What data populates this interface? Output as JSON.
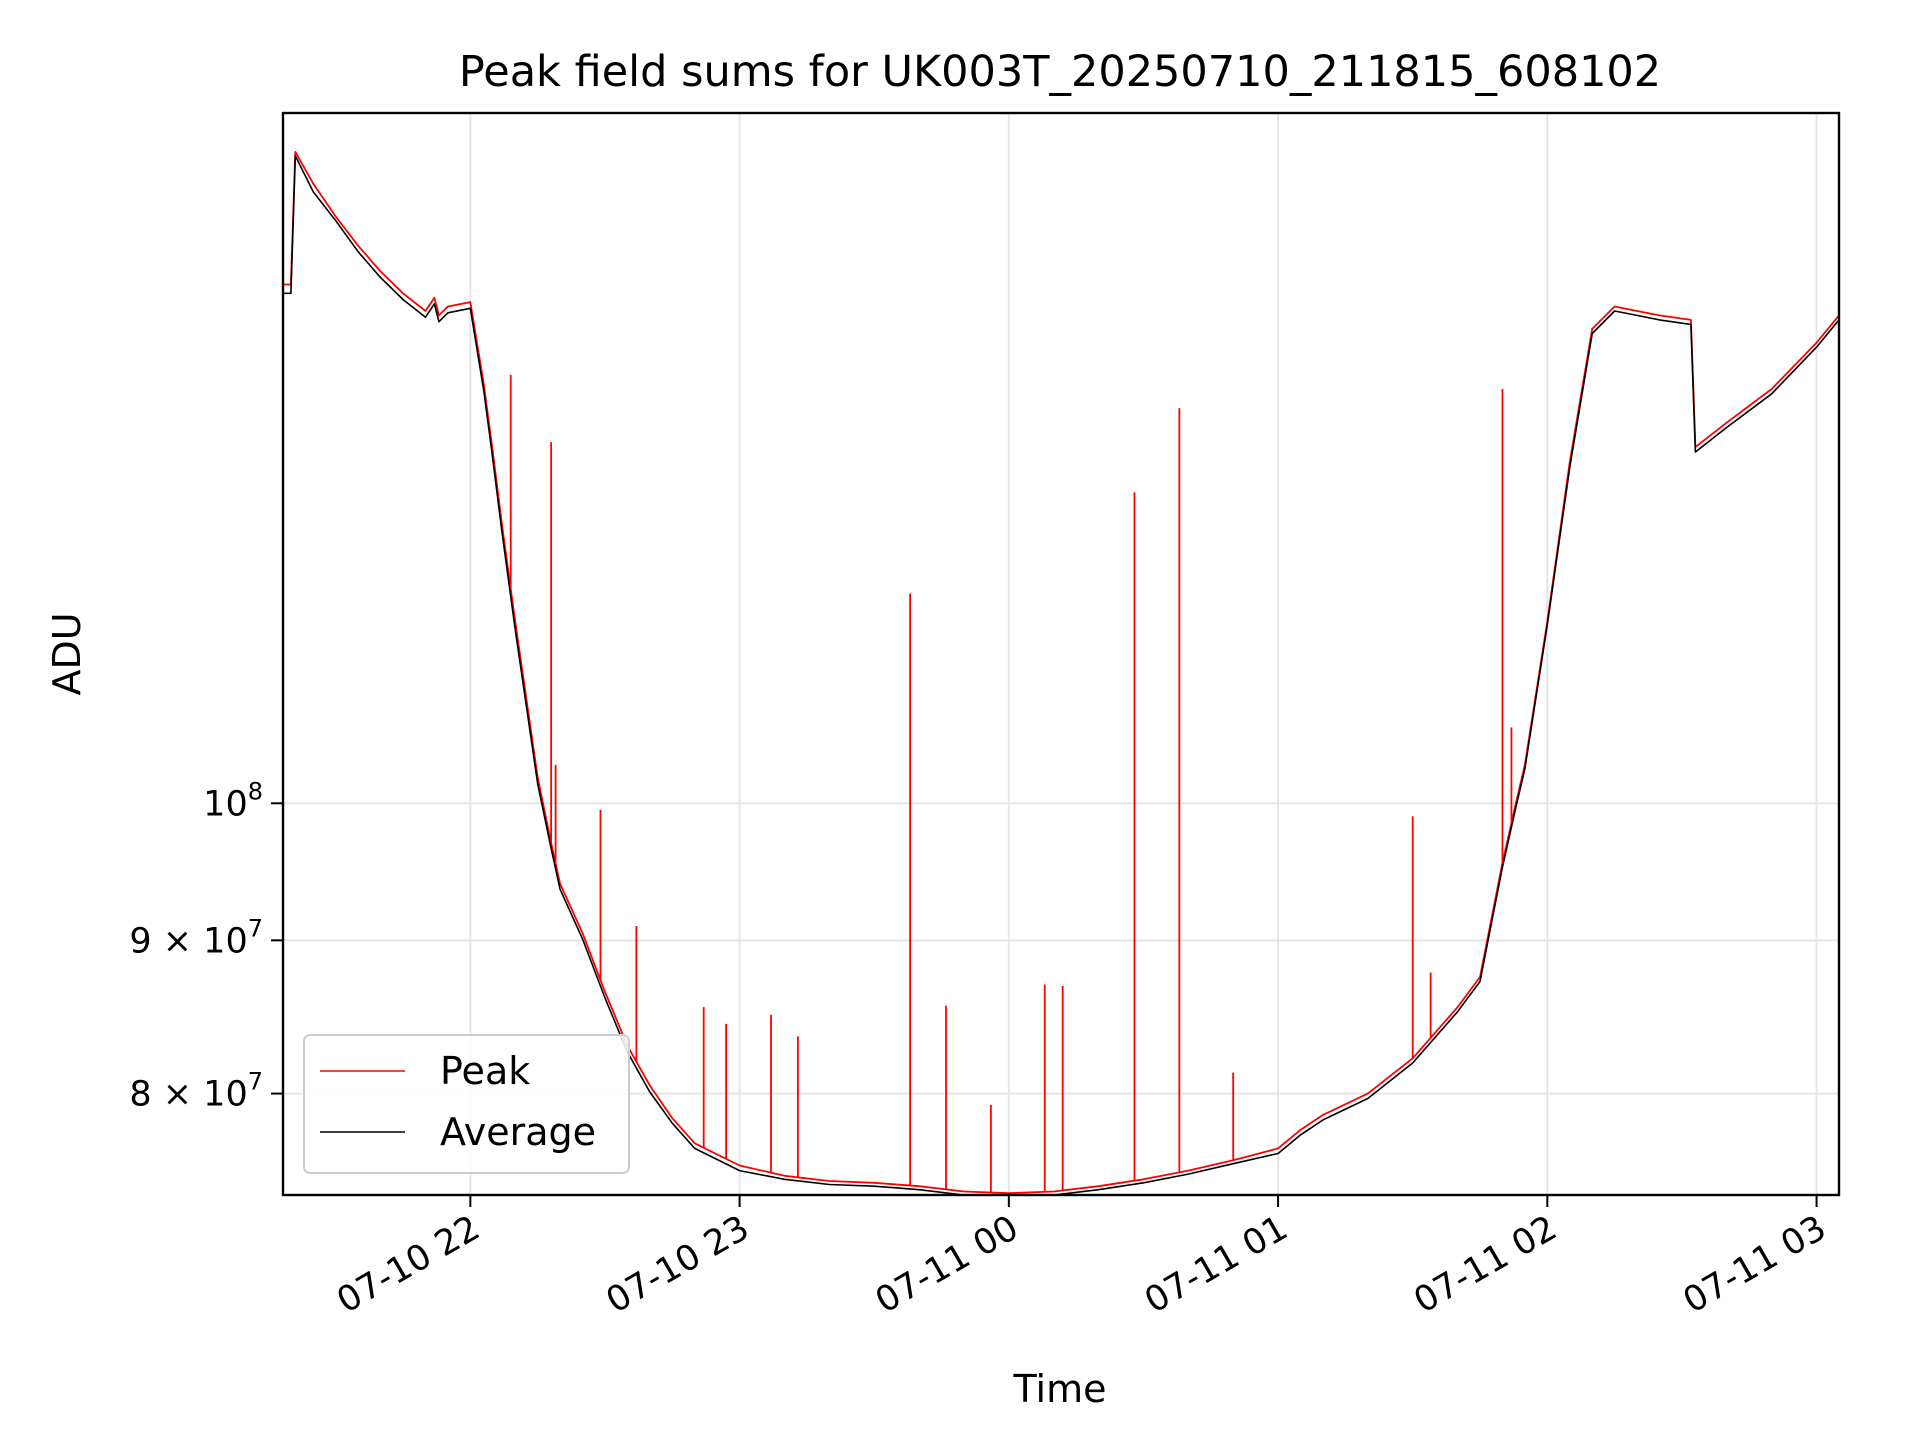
{
  "chart_data": {
    "type": "line",
    "title": "Peak field sums for UK003T_20250710_211815_608102",
    "xlabel": "Time",
    "ylabel": "ADU",
    "x_scale": "time",
    "y_scale": "log",
    "xlim": [
      "2025-07-10 21:18:15",
      "2025-07-11 03:05:00"
    ],
    "ylim": [
      74000000,
      170000000
    ],
    "x_ticks": [
      {
        "value": "2025-07-10 22:00",
        "label": "07-10 22"
      },
      {
        "value": "2025-07-10 23:00",
        "label": "07-10 23"
      },
      {
        "value": "2025-07-11 00:00",
        "label": "07-11 00"
      },
      {
        "value": "2025-07-11 01:00",
        "label": "07-11 01"
      },
      {
        "value": "2025-07-11 02:00",
        "label": "07-11 02"
      },
      {
        "value": "2025-07-11 03:00",
        "label": "07-11 03"
      }
    ],
    "y_ticks": [
      {
        "value": 80000000,
        "base": "8",
        "exp": "7"
      },
      {
        "value": 90000000,
        "base": "9",
        "exp": "7"
      },
      {
        "value": 100000000,
        "base": "",
        "exp": "8"
      }
    ],
    "grid": true,
    "legend": "lower-left",
    "series": [
      {
        "name": "Peak",
        "color": "#ff0000",
        "x": [
          "2025-07-10 21:18:15",
          "2025-07-10 21:20",
          "2025-07-10 21:21",
          "2025-07-10 21:25",
          "2025-07-10 21:30",
          "2025-07-10 21:35",
          "2025-07-10 21:40",
          "2025-07-10 21:45",
          "2025-07-10 21:50",
          "2025-07-10 21:52",
          "2025-07-10 21:53",
          "2025-07-10 21:55",
          "2025-07-10 22:00",
          "2025-07-10 22:03",
          "2025-07-10 22:05",
          "2025-07-10 22:07",
          "2025-07-10 22:10",
          "2025-07-10 22:15",
          "2025-07-10 22:18",
          "2025-07-10 22:20",
          "2025-07-10 22:25",
          "2025-07-10 22:30",
          "2025-07-10 22:35",
          "2025-07-10 22:40",
          "2025-07-10 22:45",
          "2025-07-10 22:50",
          "2025-07-10 23:00",
          "2025-07-10 23:10",
          "2025-07-10 23:20",
          "2025-07-10 23:30",
          "2025-07-10 23:40",
          "2025-07-10 23:50",
          "2025-07-11 00:00",
          "2025-07-11 00:10",
          "2025-07-11 00:20",
          "2025-07-11 00:30",
          "2025-07-11 00:40",
          "2025-07-11 00:50",
          "2025-07-11 01:00",
          "2025-07-11 01:05",
          "2025-07-11 01:10",
          "2025-07-11 01:20",
          "2025-07-11 01:30",
          "2025-07-11 01:40",
          "2025-07-11 01:45",
          "2025-07-11 01:50",
          "2025-07-11 01:53",
          "2025-07-11 01:55",
          "2025-07-11 02:00",
          "2025-07-11 02:05",
          "2025-07-11 02:10",
          "2025-07-11 02:15",
          "2025-07-11 02:20",
          "2025-07-11 02:25",
          "2025-07-11 02:32",
          "2025-07-11 02:33",
          "2025-07-11 02:40",
          "2025-07-11 02:50",
          "2025-07-11 03:00",
          "2025-07-11 03:05"
        ],
        "y": [
          149000000,
          149000000,
          165000000,
          161000000,
          157000000,
          153500000,
          150500000,
          148000000,
          146000000,
          147500000,
          145500000,
          146500000,
          147000000,
          138000000,
          131000000,
          124000000,
          115000000,
          102000000,
          97000000,
          94000000,
          90500000,
          86500000,
          83000000,
          80500000,
          78500000,
          77000000,
          75700000,
          75100000,
          74800000,
          74700000,
          74500000,
          74200000,
          74100000,
          74200000,
          74500000,
          74900000,
          75400000,
          76000000,
          76700000,
          77800000,
          78700000,
          80000000,
          82200000,
          85500000,
          87500000,
          95500000,
          100000000,
          103000000,
          115000000,
          130000000,
          144000000,
          146500000,
          146000000,
          145500000,
          145000000,
          131500000,
          134000000,
          137500000,
          142500000,
          145500000
        ]
      },
      {
        "name": "Average",
        "color": "#000000",
        "x": [
          "2025-07-10 21:18:15",
          "2025-07-10 21:20",
          "2025-07-10 21:21",
          "2025-07-10 21:25",
          "2025-07-10 21:30",
          "2025-07-10 21:35",
          "2025-07-10 21:40",
          "2025-07-10 21:45",
          "2025-07-10 21:50",
          "2025-07-10 21:52",
          "2025-07-10 21:53",
          "2025-07-10 21:55",
          "2025-07-10 22:00",
          "2025-07-10 22:03",
          "2025-07-10 22:05",
          "2025-07-10 22:07",
          "2025-07-10 22:10",
          "2025-07-10 22:15",
          "2025-07-10 22:18",
          "2025-07-10 22:20",
          "2025-07-10 22:25",
          "2025-07-10 22:30",
          "2025-07-10 22:35",
          "2025-07-10 22:40",
          "2025-07-10 22:45",
          "2025-07-10 22:50",
          "2025-07-10 23:00",
          "2025-07-10 23:10",
          "2025-07-10 23:20",
          "2025-07-10 23:30",
          "2025-07-10 23:40",
          "2025-07-10 23:50",
          "2025-07-11 00:00",
          "2025-07-11 00:10",
          "2025-07-11 00:20",
          "2025-07-11 00:30",
          "2025-07-11 00:40",
          "2025-07-11 00:50",
          "2025-07-11 01:00",
          "2025-07-11 01:05",
          "2025-07-11 01:10",
          "2025-07-11 01:20",
          "2025-07-11 01:30",
          "2025-07-11 01:40",
          "2025-07-11 01:45",
          "2025-07-11 01:50",
          "2025-07-11 01:53",
          "2025-07-11 01:55",
          "2025-07-11 02:00",
          "2025-07-11 02:05",
          "2025-07-11 02:10",
          "2025-07-11 02:15",
          "2025-07-11 02:20",
          "2025-07-11 02:25",
          "2025-07-11 02:32",
          "2025-07-11 02:33",
          "2025-07-11 02:40",
          "2025-07-11 02:50",
          "2025-07-11 03:00",
          "2025-07-11 03:05"
        ],
        "y": [
          148000000,
          148000000,
          164500000,
          160000000,
          156500000,
          152800000,
          149800000,
          147300000,
          145300000,
          146800000,
          144800000,
          145800000,
          146300000,
          137300000,
          130300000,
          123300000,
          114300000,
          101500000,
          96600000,
          93600000,
          90100000,
          86100000,
          82600000,
          80100000,
          78200000,
          76700000,
          75400000,
          74900000,
          74600000,
          74500000,
          74300000,
          74000000,
          73900000,
          74000000,
          74300000,
          74700000,
          75200000,
          75800000,
          76400000,
          77500000,
          78400000,
          79700000,
          81900000,
          85200000,
          87200000,
          95200000,
          99700000,
          102700000,
          114700000,
          129500000,
          143500000,
          146000000,
          145500000,
          145000000,
          144500000,
          131000000,
          133500000,
          137000000,
          142000000,
          145000000
        ]
      }
    ],
    "spikes": [
      {
        "x": "2025-07-10 22:09",
        "y": 139000000
      },
      {
        "x": "2025-07-10 22:18",
        "y": 132000000
      },
      {
        "x": "2025-07-10 22:19",
        "y": 103000000
      },
      {
        "x": "2025-07-10 22:29",
        "y": 99500000
      },
      {
        "x": "2025-07-10 22:37",
        "y": 91000000
      },
      {
        "x": "2025-07-10 22:52",
        "y": 85500000
      },
      {
        "x": "2025-07-10 22:57",
        "y": 84400000
      },
      {
        "x": "2025-07-10 23:07",
        "y": 85000000
      },
      {
        "x": "2025-07-10 23:13",
        "y": 83600000
      },
      {
        "x": "2025-07-10 23:38",
        "y": 117500000
      },
      {
        "x": "2025-07-10 23:46",
        "y": 85600000
      },
      {
        "x": "2025-07-10 23:56",
        "y": 79300000
      },
      {
        "x": "2025-07-11 00:08",
        "y": 87000000
      },
      {
        "x": "2025-07-11 00:12",
        "y": 86900000
      },
      {
        "x": "2025-07-11 00:28",
        "y": 127000000
      },
      {
        "x": "2025-07-11 00:38",
        "y": 135500000
      },
      {
        "x": "2025-07-11 00:50",
        "y": 81300000
      },
      {
        "x": "2025-07-11 01:30",
        "y": 99000000
      },
      {
        "x": "2025-07-11 01:34",
        "y": 87800000
      },
      {
        "x": "2025-07-11 01:50",
        "y": 137500000
      },
      {
        "x": "2025-07-11 01:52",
        "y": 106000000
      }
    ]
  }
}
